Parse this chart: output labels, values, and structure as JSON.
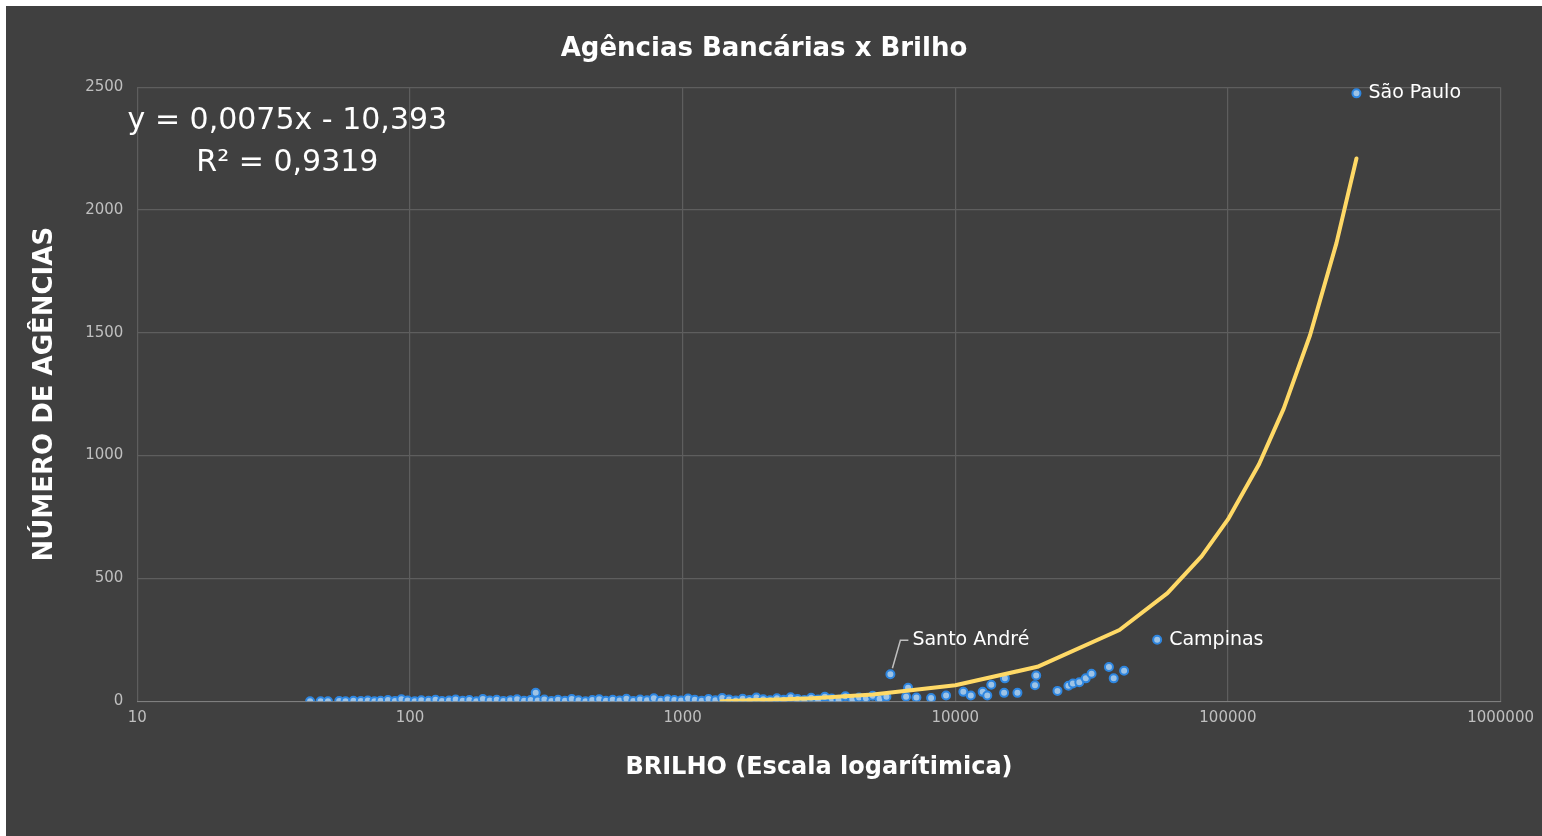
{
  "chart_data": {
    "type": "scatter",
    "title": "Agências Bancárias x Brilho",
    "xlabel": "BRILHO (Escala logarítimica)",
    "ylabel": "NÚMERO DE AGÊNCIAS",
    "log": "x",
    "grid": true,
    "legend": false,
    "marker": "circle",
    "xlim": [
      10,
      1000000
    ],
    "xticks": [
      10,
      100,
      1000,
      10000,
      100000,
      1000000
    ],
    "ylim": [
      0,
      2500
    ],
    "yticks": [
      0,
      500,
      1000,
      1500,
      2000,
      2500
    ],
    "series": [
      {
        "color": "#9dc3e6",
        "x": [
          43,
          47,
          50,
          55,
          58,
          62,
          66,
          70,
          74,
          78,
          83,
          88,
          93,
          98,
          104,
          110,
          117,
          124,
          131,
          139,
          147,
          156,
          165,
          175,
          185,
          196,
          208,
          220,
          233,
          247,
          262,
          277,
          289,
          294,
          311,
          330,
          349,
          370,
          392,
          415,
          440,
          466,
          494,
          523,
          554,
          587,
          622,
          659,
          698,
          740,
          784,
          830,
          880,
          932,
          987,
          1046,
          1108,
          1174,
          1244,
          1318,
          1396,
          1479,
          1567,
          1660,
          1759,
          1864,
          1975,
          2092,
          2217,
          2349,
          2489,
          2637,
          2794,
          2960,
          3136,
          3323,
          3520,
          3730,
          3952,
          4187,
          4436,
          4700,
          4980,
          5276,
          5590,
          5780,
          6600,
          6710,
          7200,
          8150,
          9250,
          10700,
          11400,
          12600,
          13100,
          13550,
          15100,
          15200,
          16900,
          19600,
          19800,
          23700,
          26000,
          27000,
          28500,
          30100,
          31600,
          36600,
          38100,
          41600,
          55000,
          296000
        ],
        "values": [
          0,
          0,
          0,
          1,
          0,
          2,
          1,
          3,
          0,
          2,
          5,
          1,
          8,
          3,
          0,
          4,
          2,
          6,
          1,
          3,
          7,
          2,
          5,
          0,
          9,
          3,
          6,
          1,
          4,
          8,
          2,
          5,
          34,
          3,
          7,
          1,
          6,
          2,
          9,
          4,
          0,
          5,
          8,
          2,
          6,
          3,
          10,
          1,
          7,
          4,
          12,
          2,
          8,
          5,
          3,
          11,
          6,
          2,
          9,
          4,
          13,
          7,
          3,
          10,
          5,
          15,
          8,
          4,
          12,
          6,
          16,
          9,
          5,
          14,
          7,
          18,
          11,
          6,
          20,
          9,
          15,
          12,
          22,
          10,
          18,
          110,
          18,
          55,
          15,
          13,
          23,
          38,
          23,
          38,
          23,
          67,
          34,
          93,
          34,
          65,
          105,
          42,
          63,
          72,
          77,
          93,
          112,
          139,
          93,
          124,
          250,
          2475
        ]
      },
      {
        "type": "line",
        "color": "#ffd966",
        "marker": "none",
        "x": [
          1386,
          3000,
          5000,
          10000,
          20000,
          40000,
          60000,
          80000,
          100000,
          130000,
          160000,
          200000,
          250000,
          296000
        ],
        "values": [
          0,
          12,
          27,
          65,
          140,
          290,
          440,
          590,
          740,
          965,
          1190,
          1490,
          1865,
          2210
        ]
      }
    ],
    "annotations": [
      "y = 0,0075x - 10,393",
      "R² = 0,9319",
      {
        "text": "Santo André",
        "x": 5780,
        "y": 110
      },
      {
        "text": "Campinas",
        "x": 55000,
        "y": 250
      },
      {
        "text": "São Paulo",
        "x": 296000,
        "y": 2475
      }
    ]
  }
}
